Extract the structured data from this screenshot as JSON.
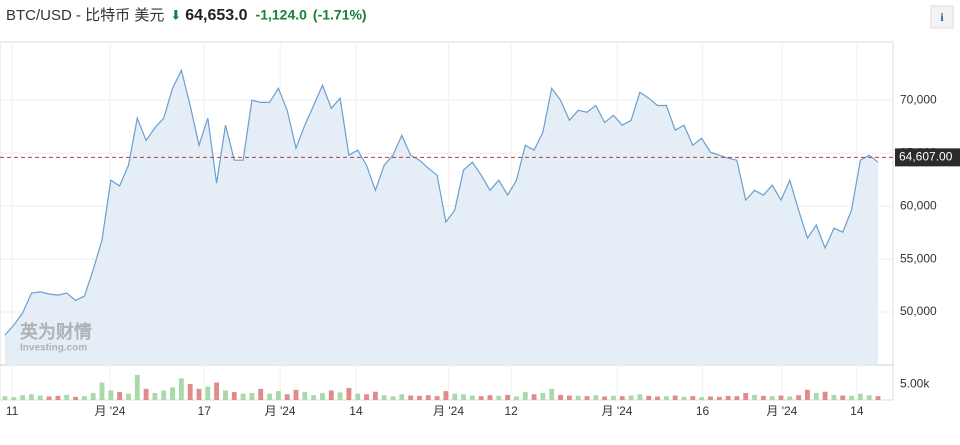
{
  "header": {
    "title": "BTC/USD - 比特币 美元",
    "arrow": "⬇",
    "price": "64,653.0",
    "change": "-1,124.0",
    "change_pct": "(-1.71%)",
    "info": "i"
  },
  "watermark": {
    "brand": "英为财情",
    "site": "Investing.com"
  },
  "chart_data": {
    "type": "area",
    "series": [
      {
        "color": "#6a9fd0",
        "fill": "#e5eef7",
        "values": [
          47830,
          48770,
          49900,
          51800,
          51900,
          51700,
          51600,
          51800,
          51100,
          51500,
          54000,
          56800,
          62450,
          61900,
          63870,
          68300,
          66200,
          67400,
          68300,
          71130,
          72830,
          69500,
          65750,
          68300,
          62170,
          67640,
          64340,
          64340,
          70000,
          69800,
          69800,
          71130,
          69050,
          65470,
          67640,
          69500,
          71420,
          69240,
          70190,
          64810,
          65280,
          63870,
          61500,
          63870,
          64810,
          66700,
          64810,
          64340,
          63580,
          62920,
          58500,
          59620,
          63400,
          64150,
          62920,
          61500,
          62450,
          61040,
          62450,
          65750,
          65280,
          66980,
          71130,
          70000,
          68110,
          69050,
          68870,
          69500,
          67900,
          68580,
          67640,
          68110,
          70750,
          70190,
          69500,
          69500,
          67170,
          67640,
          65750,
          66420,
          65090,
          64810,
          64530,
          64340,
          60570,
          61500,
          61040,
          61980,
          60570,
          62450,
          59620,
          56980,
          58210,
          56040,
          57920,
          57540,
          59620,
          64340,
          64810,
          64150
        ]
      }
    ],
    "last_price": {
      "value": 64607,
      "label": "64,607.00",
      "color": "#b04040"
    },
    "xlim": [
      0,
      99
    ],
    "xticks": [
      {
        "value": 0.8,
        "label": "11"
      },
      {
        "value": 11.9,
        "label": "月 '24"
      },
      {
        "value": 22.6,
        "label": "17"
      },
      {
        "value": 31.2,
        "label": "月 '24"
      },
      {
        "value": 39.8,
        "label": "14"
      },
      {
        "value": 50.3,
        "label": "月 '24"
      },
      {
        "value": 57.4,
        "label": "12"
      },
      {
        "value": 69.4,
        "label": "月 '24"
      },
      {
        "value": 79.1,
        "label": "16"
      },
      {
        "value": 88.1,
        "label": "月 '24"
      },
      {
        "value": 96.6,
        "label": "14"
      }
    ],
    "ylim": [
      45000,
      75500
    ],
    "yticks": [
      {
        "value": 50000,
        "label": "50,000"
      },
      {
        "value": 55000,
        "label": "55,000"
      },
      {
        "value": 60000,
        "label": "60,000"
      },
      {
        "value": 65000,
        "label": "65,000"
      },
      {
        "value": 70000,
        "label": "70,000"
      }
    ],
    "grid": true,
    "volume": {
      "up_color": "#a9d9a9",
      "down_color": "#e08a8a",
      "values": [
        1200,
        900,
        1500,
        1800,
        1400,
        1100,
        1300,
        1600,
        1000,
        1200,
        2200,
        5500,
        3000,
        2500,
        2000,
        7900,
        3500,
        2200,
        3000,
        4000,
        6800,
        5000,
        3500,
        4200,
        5500,
        3000,
        2500,
        2000,
        2200,
        3500,
        2000,
        2800,
        1800,
        3200,
        2500,
        1500,
        2200,
        3000,
        2400,
        3800,
        2000,
        1800,
        2600,
        1500,
        1200,
        1800,
        1400,
        1300,
        1500,
        1200,
        2800,
        2000,
        1800,
        1400,
        1200,
        1500,
        1300,
        1600,
        1100,
        2500,
        1800,
        2200,
        3500,
        1600,
        1400,
        1300,
        1200,
        1500,
        1100,
        1300,
        1200,
        1400,
        1800,
        1300,
        1100,
        1200,
        1400,
        1000,
        1200,
        900,
        1100,
        1000,
        1300,
        1200,
        2200,
        1600,
        1300,
        1200,
        1400,
        1100,
        1500,
        3200,
        2200,
        2600,
        1600,
        1400,
        1300,
        2000,
        1500,
        1200
      ],
      "ylim": [
        0,
        11000
      ],
      "yticks": [
        {
          "value": 5000,
          "label": "5.00k"
        }
      ]
    }
  }
}
